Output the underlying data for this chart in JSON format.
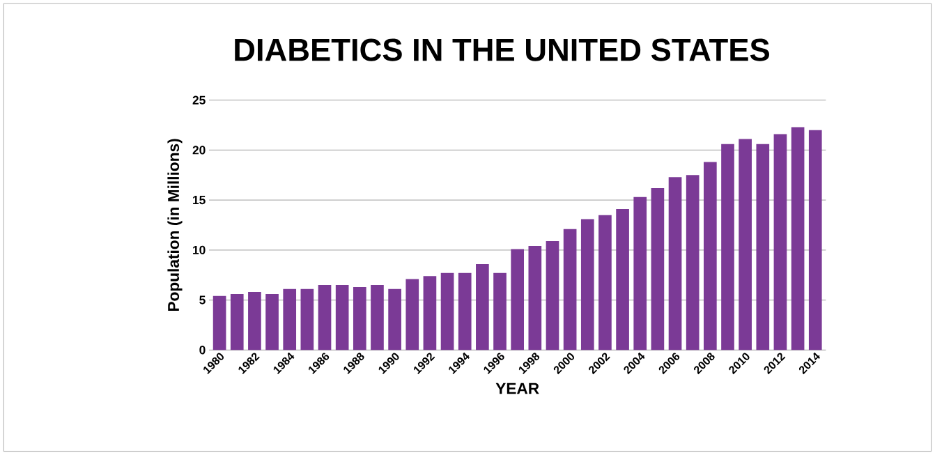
{
  "chart_data": {
    "type": "bar",
    "title": "DIABETICS IN THE UNITED STATES",
    "xlabel": "YEAR",
    "ylabel": "Population (in Millions)",
    "categories": [
      "1980",
      null,
      "1982",
      null,
      "1984",
      null,
      "1986",
      null,
      "1988",
      null,
      "1990",
      null,
      "1992",
      null,
      "1994",
      null,
      "1996",
      null,
      "1998",
      null,
      "2000",
      null,
      "2002",
      null,
      "2004",
      null,
      "2006",
      null,
      "2008",
      null,
      "2010",
      null,
      "2012",
      null,
      "2014"
    ],
    "values": [
      5.4,
      5.6,
      5.8,
      5.6,
      6.1,
      6.1,
      6.5,
      6.5,
      6.3,
      6.5,
      6.1,
      7.1,
      7.4,
      7.7,
      7.7,
      8.6,
      7.7,
      10.1,
      10.4,
      10.9,
      12.1,
      13.1,
      13.5,
      14.1,
      15.3,
      16.2,
      17.3,
      17.5,
      18.8,
      20.6,
      21.1,
      20.6,
      21.6,
      22.3,
      22.0
    ],
    "color": "#7b3a96",
    "ylim": [
      0,
      25
    ],
    "yticks": [
      0,
      5,
      10,
      15,
      20,
      25
    ],
    "grid": "y"
  }
}
